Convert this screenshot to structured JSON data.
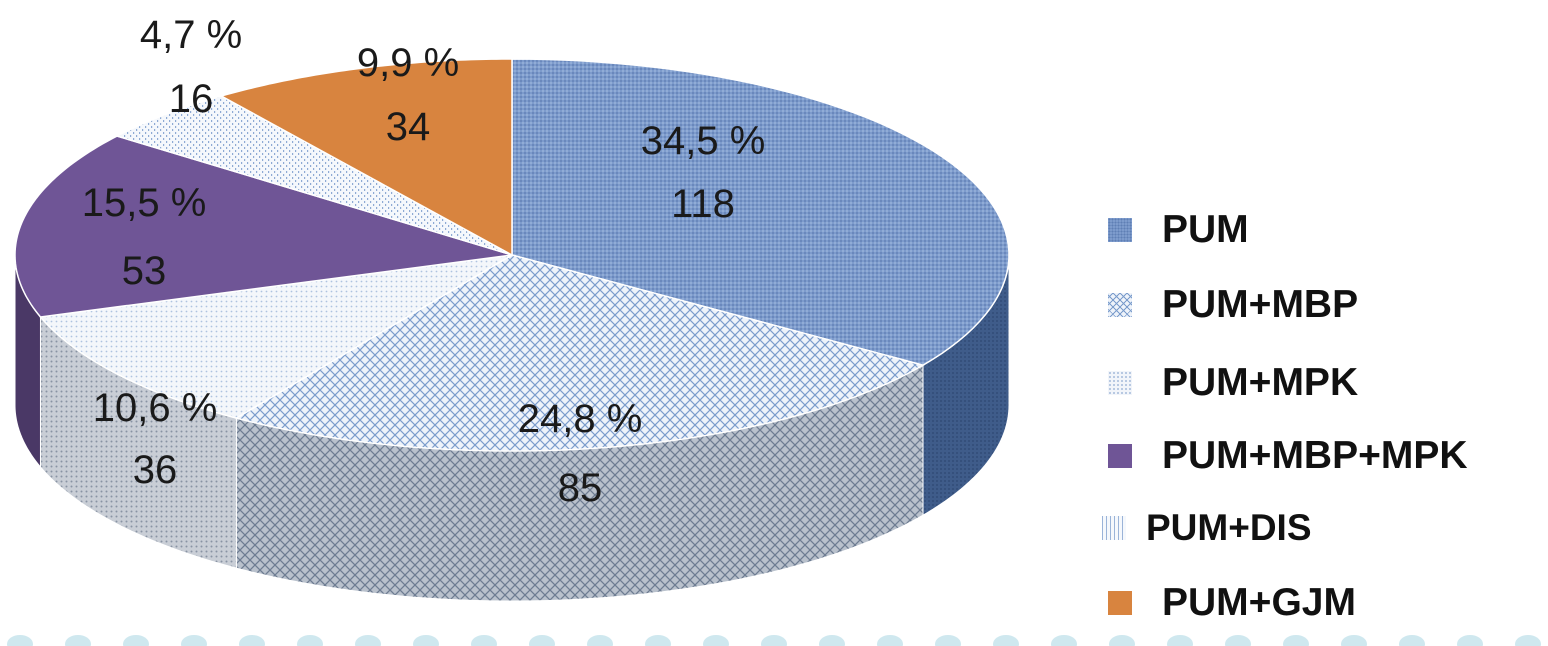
{
  "chart_data": {
    "type": "pie",
    "style": "3d",
    "categories": [
      "PUM",
      "PUM+MBP",
      "PUM+MPK",
      "PUM+MBP+MPK",
      "PUM+DIS",
      "PUM+GJM"
    ],
    "values": [
      118,
      85,
      36,
      53,
      16,
      34
    ],
    "percent_labels": [
      "34,5 %",
      "24,8 %",
      "10,6 %",
      "15,5 %",
      "4,7 %",
      "9,9 %"
    ],
    "count_labels": [
      "118",
      "85",
      "36",
      "53",
      "16",
      "34"
    ],
    "colors": [
      "#7d9bcc",
      "#a9c2e4",
      "#dfe8f4",
      "#6f5596",
      "#cad9ee",
      "#d8843f"
    ],
    "patterns": [
      "fine-dots",
      "crosshatch",
      "light-dots",
      "solid",
      "vertical-dots",
      "solid"
    ],
    "legend_position": "right",
    "title": ""
  },
  "legend": {
    "items": [
      {
        "label": "PUM"
      },
      {
        "label": "PUM+MBP"
      },
      {
        "label": "PUM+MPK"
      },
      {
        "label": "PUM+MBP+MPK"
      },
      {
        "label": "PUM+DIS"
      },
      {
        "label": "PUM+GJM"
      }
    ]
  },
  "decoration": {
    "dot_color": "#cfe8ef"
  }
}
